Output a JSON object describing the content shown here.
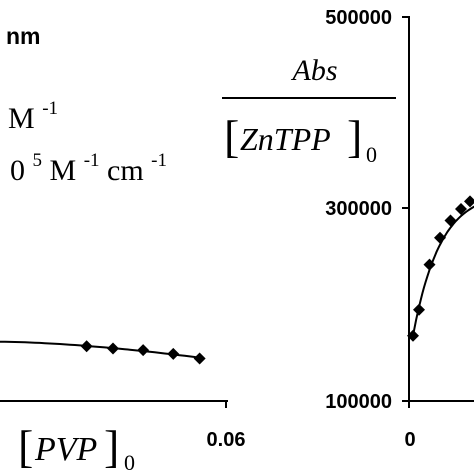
{
  "chart_data": [
    {
      "type": "scatter",
      "title": "",
      "xlabel_parts": {
        "open": "[",
        "var": "PVP",
        "close": "]",
        "sub": "0"
      },
      "ylabel": "",
      "xtick_labels": [
        "0.06"
      ],
      "xlim": [
        0,
        0.06
      ],
      "annotations": {
        "line1": "nm",
        "line2": "M",
        "line2_sup": "-1",
        "line3_prefix": "0",
        "line3_exp": "5",
        "line3_unit1": " M",
        "line3_unit1_sup": "-1",
        "line3_unit2": " cm",
        "line3_unit2_sup": "-1"
      },
      "series": [
        {
          "marker": "diamond",
          "x": [
            0.023,
            0.03,
            0.038,
            0.046,
            0.053
          ],
          "y": [
            0.72,
            0.69,
            0.67,
            0.62,
            0.56
          ],
          "fit_line": true
        }
      ]
    },
    {
      "type": "scatter",
      "title": "",
      "ylabel_parts": {
        "numerator": "Abs",
        "den_open": "[",
        "den_var": "ZnTPP",
        "den_close": "]",
        "den_sub": "0"
      },
      "ytick_labels": [
        "100000",
        "300000",
        "500000"
      ],
      "xtick_labels": [
        "0"
      ],
      "ylim": [
        100000,
        500000
      ],
      "series": [
        {
          "marker": "diamond",
          "x": [
            0.0,
            0.02,
            0.055,
            0.09,
            0.125,
            0.16,
            0.19
          ],
          "y": [
            168000,
            195000,
            242000,
            270000,
            288000,
            300000,
            308000
          ],
          "fit_line": true
        }
      ]
    }
  ]
}
